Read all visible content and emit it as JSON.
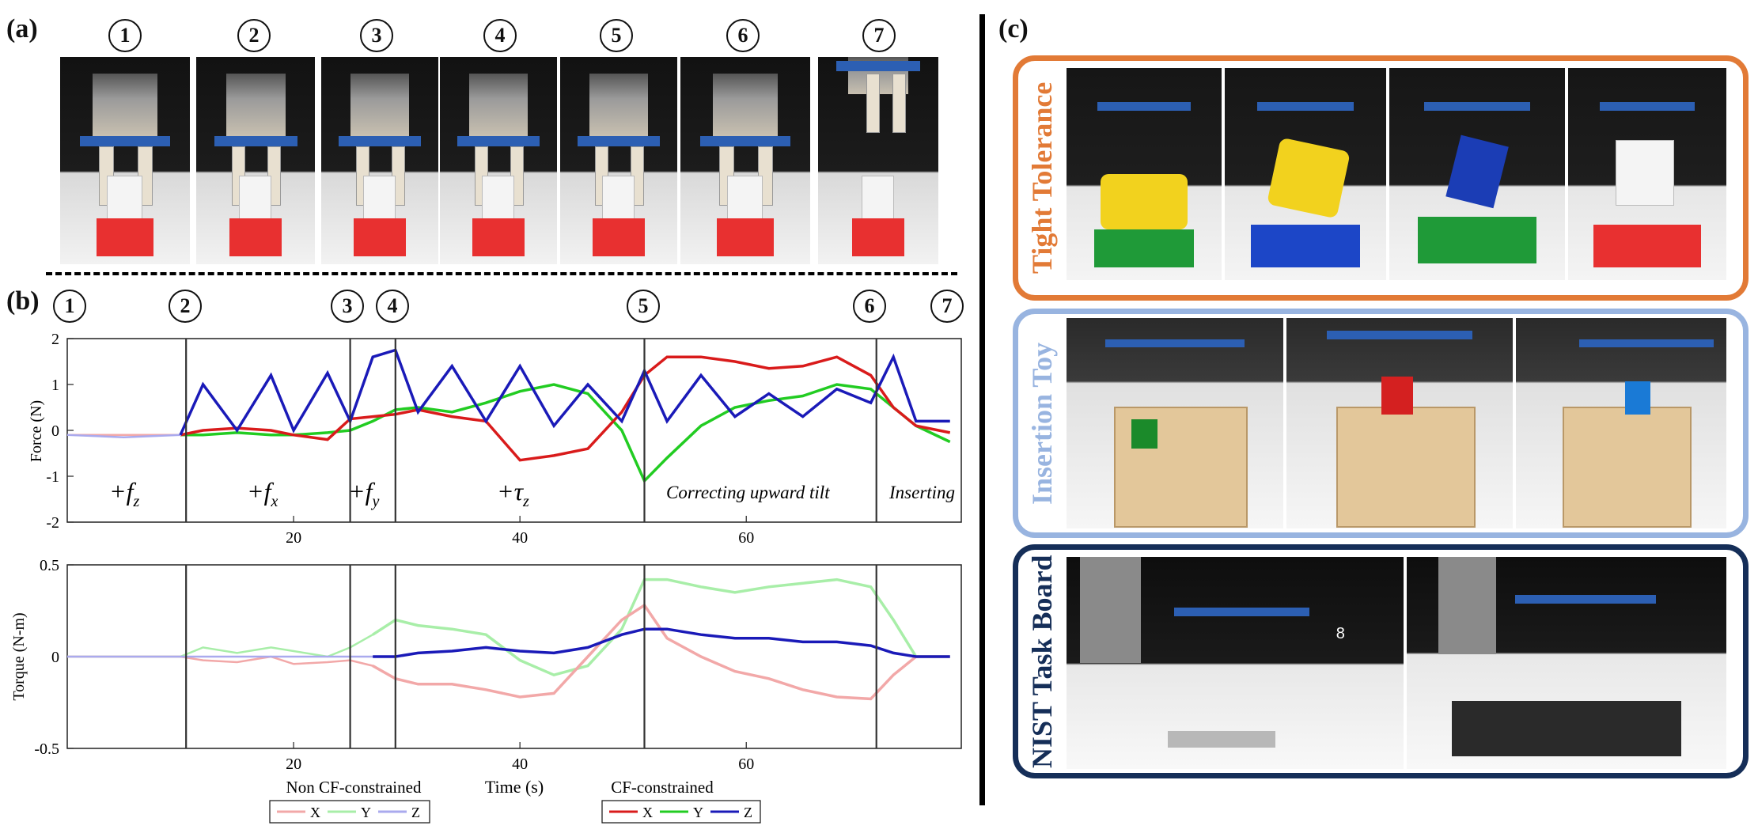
{
  "labels": {
    "a": "(a)",
    "b": "(b)",
    "c": "(c)"
  },
  "steps": [
    "1",
    "2",
    "3",
    "4",
    "5",
    "6",
    "7"
  ],
  "force_plot": {
    "ylabel": "Force (N)",
    "yticks": [
      "2",
      "1",
      "0",
      "-1",
      "-2"
    ],
    "xticks": [
      "20",
      "40",
      "60"
    ],
    "phase_labels": {
      "fz_base": "+f",
      "fz_sub": "z",
      "fx_base": "+f",
      "fx_sub": "x",
      "fy_base": "+f",
      "fy_sub": "y",
      "tz_base": "+τ",
      "tz_sub": "z",
      "correcting": "Correcting upward tilt",
      "inserting": "Inserting"
    }
  },
  "torque_plot": {
    "ylabel": "Torque (N-m)",
    "yticks": [
      "0.5",
      "0",
      "-0.5"
    ],
    "xticks": [
      "20",
      "40",
      "60"
    ],
    "xlabel": "Time (s)"
  },
  "legend": {
    "non_cf_title": "Non CF-constrained",
    "cf_title": "CF-constrained",
    "x": "X",
    "y": "Y",
    "z": "Z"
  },
  "colors": {
    "cf_x": "#d91b1b",
    "cf_y": "#22cc22",
    "cf_z": "#1a1ab8",
    "ncf_x": "#f2a8a8",
    "ncf_y": "#a8eea8",
    "ncf_z": "#aaaaee",
    "tight_tolerance": "#e27a36",
    "insertion_toy": "#98b4e0",
    "nist": "#152e58"
  },
  "cases": {
    "tight_tolerance": "Tight Tolerance",
    "insertion_toy": "Insertion Toy",
    "nist_task_board": "NIST Task Board",
    "nist_overlay_num": "8"
  },
  "chart_data": [
    {
      "type": "line",
      "ylabel": "Force (N)",
      "xlim": [
        0,
        79
      ],
      "ylim": [
        -2,
        2
      ],
      "grid": false,
      "phase_boundaries_s": [
        10.5,
        25,
        29,
        51,
        71.5
      ],
      "x": [
        0,
        5,
        10,
        12,
        15,
        18,
        20,
        23,
        25,
        27,
        29,
        31,
        34,
        37,
        40,
        43,
        46,
        49,
        51,
        53,
        56,
        59,
        62,
        65,
        68,
        71,
        73,
        75,
        78
      ],
      "series": [
        {
          "name": "X",
          "values": [
            -0.1,
            -0.1,
            -0.1,
            0.0,
            0.05,
            0.0,
            -0.1,
            -0.2,
            0.25,
            0.3,
            0.35,
            0.45,
            0.3,
            0.2,
            -0.65,
            -0.55,
            -0.4,
            0.4,
            1.2,
            1.6,
            1.6,
            1.5,
            1.35,
            1.4,
            1.6,
            1.2,
            0.5,
            0.1,
            -0.05
          ]
        },
        {
          "name": "Y",
          "values": [
            -0.1,
            -0.1,
            -0.1,
            -0.1,
            -0.05,
            -0.1,
            -0.1,
            -0.05,
            0.0,
            0.2,
            0.45,
            0.5,
            0.4,
            0.6,
            0.85,
            1.0,
            0.8,
            0.0,
            -1.1,
            -0.6,
            0.1,
            0.5,
            0.65,
            0.75,
            1.0,
            0.9,
            0.5,
            0.1,
            -0.25
          ]
        },
        {
          "name": "Z",
          "values": [
            -0.1,
            -0.15,
            -0.1,
            1.0,
            0.0,
            1.2,
            0.0,
            1.25,
            0.2,
            1.6,
            1.75,
            0.4,
            1.4,
            0.2,
            1.4,
            0.1,
            1.0,
            0.2,
            1.3,
            0.2,
            1.2,
            0.3,
            0.8,
            0.3,
            0.9,
            0.6,
            1.6,
            0.2,
            0.2
          ]
        }
      ]
    },
    {
      "type": "line",
      "ylabel": "Torque (N-m)",
      "xlabel": "Time (s)",
      "xlim": [
        0,
        79
      ],
      "ylim": [
        -0.5,
        0.5
      ],
      "grid": false,
      "x": [
        0,
        5,
        10,
        12,
        15,
        18,
        20,
        23,
        25,
        27,
        29,
        31,
        34,
        37,
        40,
        43,
        46,
        49,
        51,
        53,
        56,
        59,
        62,
        65,
        68,
        71,
        73,
        75,
        78
      ],
      "series": [
        {
          "name": "X",
          "values": [
            0.0,
            0.0,
            0.0,
            -0.02,
            -0.03,
            0.0,
            -0.04,
            -0.03,
            -0.02,
            -0.05,
            -0.12,
            -0.15,
            -0.15,
            -0.18,
            -0.22,
            -0.2,
            0.0,
            0.2,
            0.28,
            0.1,
            0.0,
            -0.08,
            -0.12,
            -0.18,
            -0.22,
            -0.23,
            -0.1,
            0.0,
            0.0
          ]
        },
        {
          "name": "Y",
          "values": [
            0.0,
            0.0,
            0.0,
            0.05,
            0.02,
            0.05,
            0.03,
            0.0,
            0.05,
            0.12,
            0.2,
            0.17,
            0.15,
            0.12,
            -0.02,
            -0.1,
            -0.05,
            0.15,
            0.42,
            0.42,
            0.38,
            0.35,
            0.38,
            0.4,
            0.42,
            0.38,
            0.2,
            0.0,
            0.0
          ]
        },
        {
          "name": "Z",
          "values": [
            0.0,
            0.0,
            0.0,
            0.0,
            0.0,
            0.0,
            0.0,
            0.0,
            0.0,
            0.0,
            0.0,
            0.02,
            0.03,
            0.05,
            0.03,
            0.02,
            0.05,
            0.12,
            0.15,
            0.15,
            0.12,
            0.1,
            0.1,
            0.08,
            0.08,
            0.06,
            0.02,
            0.0,
            0.0
          ]
        }
      ]
    }
  ]
}
